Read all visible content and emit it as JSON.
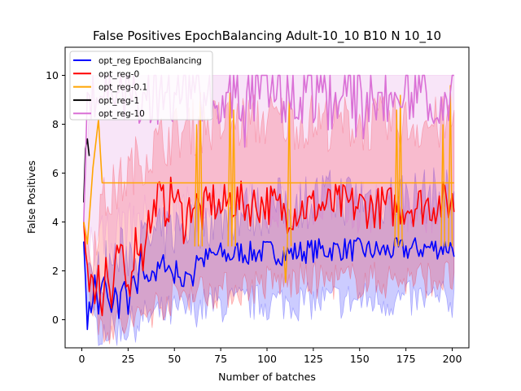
{
  "chart_data": {
    "type": "line",
    "title": "False Positives EpochBalancing Adult-10_10 B10 N 10_10",
    "xlabel": "Number of batches",
    "ylabel": "False Positives",
    "xlim": [
      -9,
      209
    ],
    "ylim": [
      -1.15,
      11.15
    ],
    "xticks": [
      0,
      25,
      50,
      75,
      100,
      125,
      150,
      175,
      200
    ],
    "yticks": [
      0,
      2,
      4,
      6,
      8,
      10
    ],
    "grid": false,
    "legend_position": "upper-left",
    "x": {
      "start": 1,
      "end": 201,
      "step": 1
    },
    "series": [
      {
        "name": "opt_reg EpochBalancing",
        "color": "#0000ff",
        "band": true,
        "keyframes": [
          [
            1,
            3.2
          ],
          [
            3,
            0.1
          ],
          [
            5,
            0.5
          ],
          [
            7,
            1.6
          ],
          [
            9,
            0.4
          ],
          [
            12,
            1.7
          ],
          [
            15,
            0.3
          ],
          [
            18,
            1.1
          ],
          [
            20,
            0.5
          ],
          [
            22,
            1.4
          ],
          [
            25,
            0.6
          ],
          [
            28,
            1.6
          ],
          [
            30,
            1.0
          ],
          [
            32,
            2.5
          ],
          [
            35,
            1.5
          ],
          [
            38,
            2.2
          ],
          [
            40,
            1.8
          ],
          [
            45,
            2.4
          ],
          [
            50,
            1.8
          ],
          [
            52,
            2.2
          ],
          [
            55,
            1.2
          ],
          [
            58,
            2.2
          ],
          [
            60,
            1.6
          ],
          [
            62,
            2.7
          ],
          [
            65,
            2.4
          ],
          [
            70,
            2.6
          ],
          [
            75,
            2.7
          ],
          [
            80,
            2.6
          ],
          [
            85,
            2.8
          ],
          [
            90,
            2.7
          ],
          [
            100,
            2.8
          ],
          [
            110,
            2.7
          ],
          [
            120,
            2.8
          ],
          [
            140,
            2.9
          ],
          [
            160,
            2.8
          ],
          [
            180,
            2.9
          ],
          [
            200,
            3.0
          ]
        ],
        "band_lower_keyframes": [
          [
            1,
            3.0
          ],
          [
            3,
            0.0
          ],
          [
            8,
            -0.3
          ],
          [
            15,
            -0.4
          ],
          [
            25,
            -0.3
          ],
          [
            35,
            0.1
          ],
          [
            50,
            0.3
          ],
          [
            70,
            0.6
          ],
          [
            100,
            0.7
          ],
          [
            150,
            0.8
          ],
          [
            200,
            0.8
          ]
        ],
        "band_upper_keyframes": [
          [
            1,
            3.2
          ],
          [
            5,
            1.2
          ],
          [
            10,
            2.0
          ],
          [
            20,
            2.6
          ],
          [
            30,
            3.0
          ],
          [
            45,
            3.5
          ],
          [
            60,
            4.0
          ],
          [
            80,
            4.3
          ],
          [
            100,
            4.6
          ],
          [
            130,
            5.0
          ],
          [
            160,
            5.0
          ],
          [
            200,
            5.1
          ]
        ]
      },
      {
        "name": "opt_reg-0",
        "color": "#ff0000",
        "band": true,
        "keyframes": [
          [
            1,
            4.0
          ],
          [
            3,
            1.6
          ],
          [
            5,
            2.2
          ],
          [
            7,
            0.8
          ],
          [
            9,
            2.6
          ],
          [
            11,
            0.4
          ],
          [
            13,
            2.3
          ],
          [
            16,
            0.6
          ],
          [
            20,
            2.8
          ],
          [
            25,
            1.2
          ],
          [
            28,
            2.9
          ],
          [
            30,
            3.4
          ],
          [
            33,
            2.5
          ],
          [
            35,
            4.1
          ],
          [
            38,
            3.8
          ],
          [
            40,
            5.1
          ],
          [
            45,
            4.6
          ],
          [
            50,
            5.2
          ],
          [
            55,
            4.0
          ],
          [
            60,
            4.9
          ],
          [
            65,
            4.3
          ],
          [
            70,
            4.9
          ],
          [
            75,
            4.5
          ],
          [
            80,
            4.9
          ],
          [
            90,
            4.7
          ],
          [
            100,
            4.8
          ],
          [
            110,
            4.4
          ],
          [
            120,
            4.6
          ],
          [
            140,
            4.7
          ],
          [
            160,
            4.6
          ],
          [
            180,
            4.7
          ],
          [
            200,
            4.8
          ]
        ],
        "band_lower_keyframes": [
          [
            1,
            3.8
          ],
          [
            5,
            0.8
          ],
          [
            10,
            -0.2
          ],
          [
            20,
            -0.3
          ],
          [
            30,
            0.0
          ],
          [
            45,
            0.8
          ],
          [
            60,
            1.2
          ],
          [
            80,
            1.2
          ],
          [
            100,
            1.5
          ],
          [
            130,
            1.6
          ],
          [
            160,
            1.6
          ],
          [
            200,
            1.7
          ]
        ],
        "band_upper_keyframes": [
          [
            1,
            4.1
          ],
          [
            5,
            2.5
          ],
          [
            10,
            4.6
          ],
          [
            20,
            5.5
          ],
          [
            30,
            6.5
          ],
          [
            45,
            7.4
          ],
          [
            60,
            7.9
          ],
          [
            80,
            8.0
          ],
          [
            100,
            8.2
          ],
          [
            130,
            8.1
          ],
          [
            160,
            8.0
          ],
          [
            200,
            8.0
          ]
        ]
      },
      {
        "name": "opt_reg-0.1",
        "color": "#ffa500",
        "band": false,
        "keyframes": [
          [
            1,
            4.0
          ],
          [
            3,
            3.1
          ],
          [
            6,
            6.2
          ],
          [
            9,
            8.2
          ],
          [
            11,
            5.6
          ]
        ],
        "spikes": [
          [
            62,
            8.0
          ],
          [
            64,
            9.3
          ],
          [
            80,
            9.3
          ],
          [
            82,
            8.6
          ],
          [
            110,
            1.5
          ],
          [
            112,
            9.0
          ],
          [
            170,
            8.6
          ],
          [
            172,
            9.2
          ],
          [
            195,
            8.0
          ],
          [
            199,
            9.6
          ]
        ]
      },
      {
        "name": "opt_reg-1",
        "color": "#000000",
        "band": false,
        "keyframes": [
          [
            1,
            4.8
          ],
          [
            2,
            7.0
          ],
          [
            3,
            7.4
          ],
          [
            4,
            6.7
          ]
        ]
      },
      {
        "name": "opt_reg-10",
        "color": "#da70d6",
        "band": true,
        "keyframes": [
          [
            1,
            4.0
          ],
          [
            3,
            8.8
          ],
          [
            6,
            8.2
          ],
          [
            10,
            9.0
          ],
          [
            15,
            8.4
          ],
          [
            20,
            8.8
          ],
          [
            30,
            8.6
          ],
          [
            40,
            8.9
          ],
          [
            50,
            8.5
          ],
          [
            60,
            9.0
          ],
          [
            70,
            9.1
          ],
          [
            80,
            8.9
          ],
          [
            90,
            9.0
          ],
          [
            100,
            8.8
          ],
          [
            110,
            9.0
          ],
          [
            120,
            8.9
          ],
          [
            130,
            8.6
          ],
          [
            140,
            8.8
          ],
          [
            150,
            8.9
          ],
          [
            160,
            8.7
          ],
          [
            170,
            8.9
          ],
          [
            180,
            8.6
          ],
          [
            190,
            8.8
          ],
          [
            200,
            8.9
          ]
        ],
        "band_lower_keyframes": [
          [
            1,
            4.0
          ],
          [
            5,
            3.0
          ],
          [
            15,
            3.3
          ],
          [
            30,
            4.0
          ],
          [
            60,
            4.7
          ],
          [
            100,
            4.5
          ],
          [
            150,
            4.6
          ],
          [
            200,
            4.6
          ]
        ],
        "band_upper_keyframes": [
          [
            1,
            4.2
          ],
          [
            5,
            10.0
          ],
          [
            200,
            10.0
          ]
        ]
      }
    ]
  }
}
